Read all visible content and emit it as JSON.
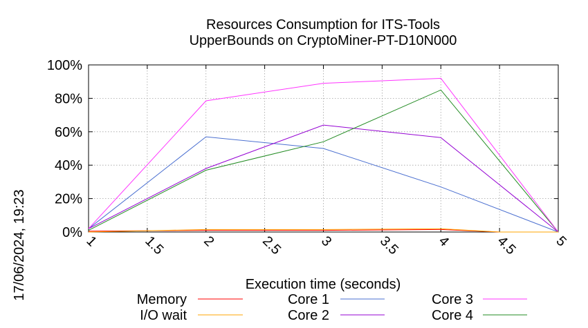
{
  "chart_data": {
    "type": "line",
    "title": "Resources Consumption for ITS-Tools",
    "subtitle": "UpperBounds on CryptoMiner-PT-D10N000",
    "xlabel": "Execution time (seconds)",
    "ylabel": "",
    "timestamp": "17/06/2024, 19:23",
    "xlim": [
      1,
      5
    ],
    "ylim": [
      0,
      100
    ],
    "x_ticks": [
      "1",
      "1.5",
      "2",
      "2.5",
      "3",
      "3.5",
      "4",
      "4.5",
      "5"
    ],
    "y_ticks": [
      "0%",
      "20%",
      "40%",
      "60%",
      "80%",
      "100%"
    ],
    "grid": true,
    "legend_position": "bottom",
    "series": [
      {
        "name": "Memory",
        "color": "#ff0000",
        "x": [
          1,
          2,
          3,
          4,
          4.5,
          5
        ],
        "y": [
          0.5,
          1,
          1,
          1.5,
          0,
          0
        ]
      },
      {
        "name": "I/O wait",
        "color": "#ffa500",
        "x": [
          1,
          2,
          3,
          4,
          4.5,
          5
        ],
        "y": [
          0,
          1.5,
          1.5,
          2,
          0,
          0
        ]
      },
      {
        "name": "Core 1",
        "color": "#4a6fd0",
        "x": [
          1,
          2,
          3,
          4,
          5
        ],
        "y": [
          2,
          57,
          50,
          27,
          0
        ]
      },
      {
        "name": "Core 2",
        "color": "#9400d3",
        "x": [
          1,
          2,
          3,
          4,
          5
        ],
        "y": [
          2,
          38,
          64,
          56.5,
          0
        ]
      },
      {
        "name": "Core 3",
        "color": "#ff33ff",
        "x": [
          1,
          2,
          3,
          4,
          5
        ],
        "y": [
          2,
          78.5,
          89,
          92,
          0
        ]
      },
      {
        "name": "Core 4",
        "color": "#228b22",
        "x": [
          1,
          2,
          3,
          4,
          5
        ],
        "y": [
          1,
          37,
          54,
          85,
          0
        ]
      }
    ]
  }
}
